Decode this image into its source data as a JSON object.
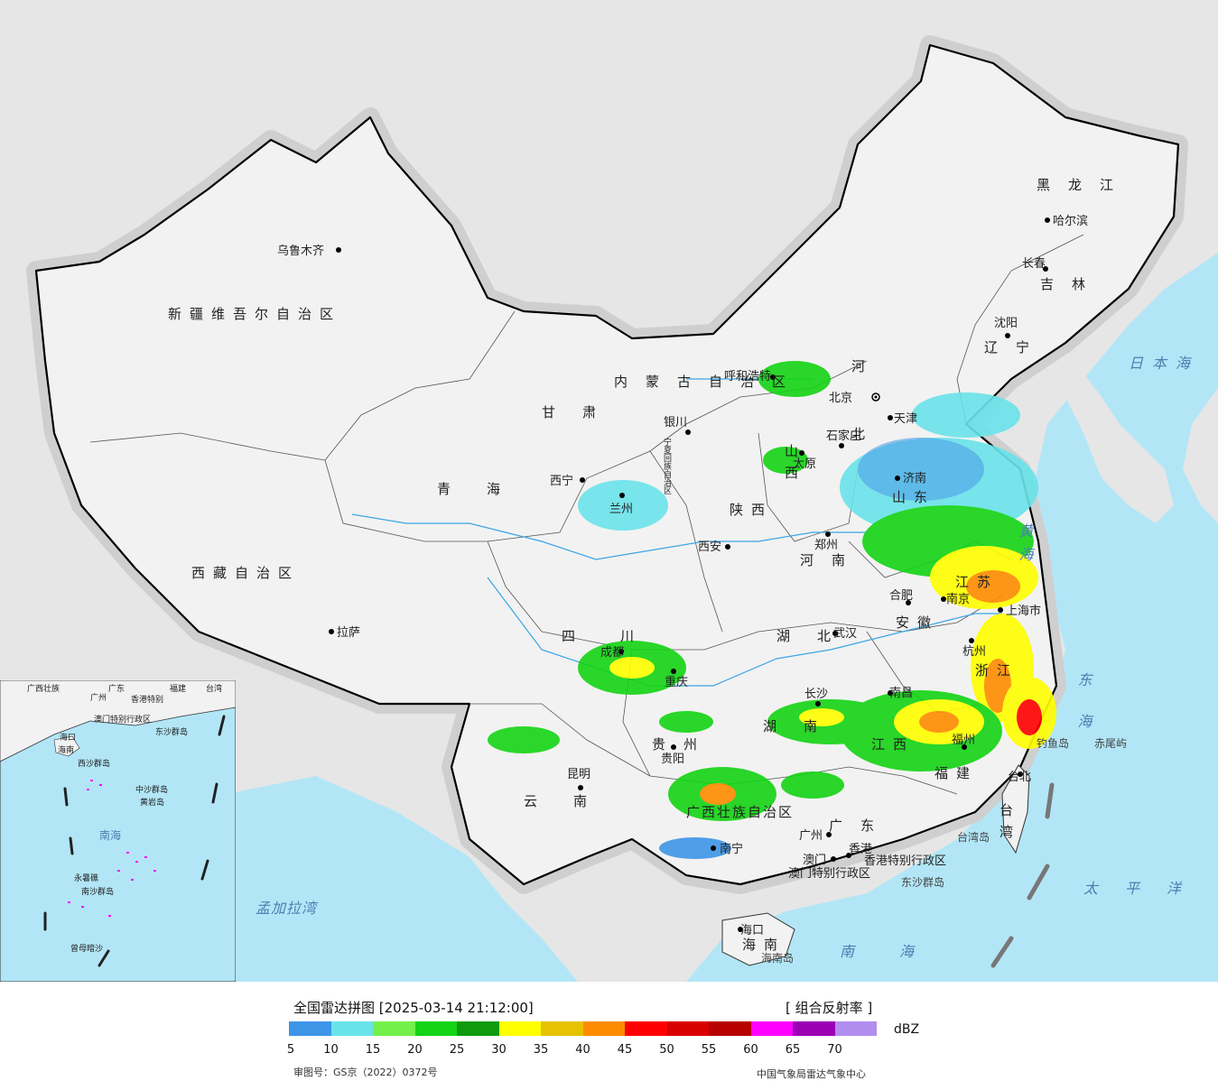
{
  "legend": {
    "title": "全国雷达拼图 [2025-03-14 21:12:00]",
    "product": "[ 组合反射率 ]",
    "unit": "dBZ",
    "ticks": [
      "5",
      "10",
      "15",
      "20",
      "25",
      "30",
      "35",
      "40",
      "45",
      "50",
      "55",
      "60",
      "65",
      "70"
    ],
    "colors": [
      "#3d95e8",
      "#69e3ea",
      "#74f04a",
      "#14d414",
      "#0d9a0d",
      "#ffff00",
      "#e6c200",
      "#ff8c00",
      "#ff0000",
      "#d90000",
      "#b80000",
      "#ff00ff",
      "#9b00b5",
      "#b28df0"
    ],
    "approval": "审图号：GS京（2022）0372号",
    "source": "中国气象局雷达气象中心"
  },
  "map": {
    "land_color": "#f2f2f2",
    "sea_color": "#b2e6f7",
    "outside_color": "#e6e6e6",
    "echo_colors": {
      "weak": "#3d95e8",
      "light": "#69e3ea",
      "moderate": "#14d414",
      "strong": "#ffff00",
      "heavy": "#ff8c00",
      "intense": "#ff0000"
    },
    "cities": [
      "乌鲁木齐",
      "拉萨",
      "西宁",
      "兰州",
      "银川",
      "呼和浩特",
      "北京",
      "天津",
      "石家庄",
      "太原",
      "济南",
      "郑州",
      "西安",
      "成都",
      "重庆",
      "贵阳",
      "昆明",
      "南宁",
      "广州",
      "澳门",
      "香港",
      "长沙",
      "武汉",
      "合肥",
      "南京",
      "上海市",
      "杭州",
      "南昌",
      "福州",
      "台北",
      "海口",
      "长春",
      "哈尔滨",
      "沈阳"
    ],
    "provinces": [
      "新疆维吾尔自治区",
      "西藏自治区",
      "青海",
      "甘肃",
      "内蒙古自治区",
      "宁夏回族自治区",
      "陕西",
      "山西",
      "河北",
      "山东",
      "河南",
      "湖北",
      "湖南",
      "四川",
      "云南",
      "贵州",
      "广西壮族自治区",
      "广东",
      "福建",
      "江西",
      "浙江",
      "安徽",
      "江苏",
      "黑龙江",
      "吉林",
      "辽宁",
      "海南",
      "台湾",
      "香港特别行政区",
      "澳门特别行政区"
    ],
    "seas": [
      "日本海",
      "黄海",
      "东海",
      "太平洋",
      "南海",
      "孟加拉湾"
    ],
    "islands": [
      "钓鱼岛",
      "赤尾屿",
      "台湾岛",
      "东沙群岛",
      "海南岛"
    ],
    "inset": {
      "labels": [
        "广西壮族",
        "广东",
        "福建",
        "台湾",
        "广州",
        "香港特别",
        "澳门特别行政区",
        "海口",
        "海南",
        "西沙群岛",
        "东沙群岛",
        "中沙群岛",
        "黄岩岛",
        "南海",
        "永暑礁",
        "南沙群岛",
        "曾母暗沙"
      ]
    }
  }
}
